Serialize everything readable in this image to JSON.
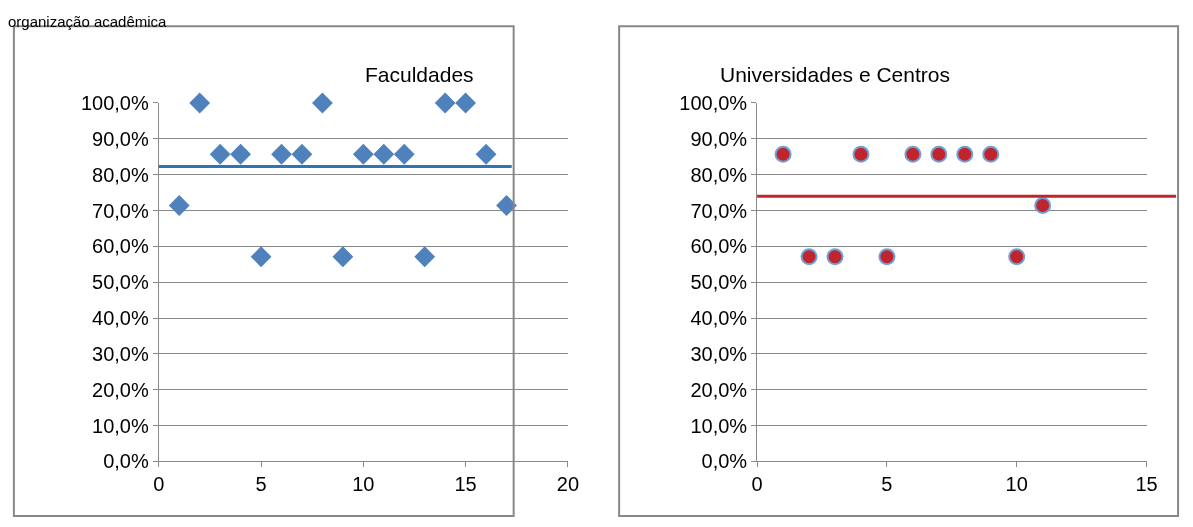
{
  "chart_data": [
    {
      "type": "scatter",
      "title": "Faculdades",
      "annotations": [
        "organização acadêmica"
      ],
      "x": [
        1,
        2,
        3,
        4,
        5,
        6,
        7,
        8,
        9,
        10,
        11,
        12,
        13,
        14,
        15,
        16,
        17
      ],
      "values": [
        71.4,
        100,
        85.7,
        85.7,
        57.1,
        85.7,
        85.7,
        100,
        57.1,
        85.7,
        85.7,
        85.7,
        57.1,
        100,
        100,
        85.7,
        71.4
      ],
      "color": "#4f81bd",
      "marker": "diamond",
      "xlim": [
        0,
        20
      ],
      "xticks": [
        0,
        5,
        10,
        15,
        20
      ],
      "ylim": [
        0,
        100
      ],
      "yticks": [
        {
          "value": 0,
          "label": "0,0%"
        },
        {
          "value": 10,
          "label": "10,0%"
        },
        {
          "value": 20,
          "label": "20,0%"
        },
        {
          "value": 30,
          "label": "30,0%"
        },
        {
          "value": 40,
          "label": "40,0%"
        },
        {
          "value": 50,
          "label": "50,0%"
        },
        {
          "value": 60,
          "label": "60,0%"
        },
        {
          "value": 70,
          "label": "70,0%"
        },
        {
          "value": 80,
          "label": "80,0%"
        },
        {
          "value": 90,
          "label": "90,0%"
        },
        {
          "value": 100,
          "label": "100,0%"
        }
      ],
      "grid": "y",
      "legend": false,
      "ref_lines": [
        {
          "axis": "y",
          "value": 82.3,
          "color": "#2e75b6"
        }
      ]
    },
    {
      "type": "scatter",
      "title": "Universidades e Centros",
      "x": [
        1,
        2,
        3,
        4,
        5,
        6,
        7,
        8,
        9,
        10,
        11
      ],
      "values": [
        85.7,
        57.1,
        57.1,
        85.7,
        57.1,
        85.7,
        85.7,
        85.7,
        85.7,
        57.1,
        71.4
      ],
      "color": "#c0242c",
      "marker": "circle",
      "xlim": [
        0,
        15
      ],
      "xticks": [
        0,
        5,
        10,
        15
      ],
      "ylim": [
        0,
        100
      ],
      "yticks": [
        {
          "value": 0,
          "label": "0,0%"
        },
        {
          "value": 10,
          "label": "10,0%"
        },
        {
          "value": 20,
          "label": "20,0%"
        },
        {
          "value": 30,
          "label": "30,0%"
        },
        {
          "value": 40,
          "label": "40,0%"
        },
        {
          "value": 50,
          "label": "50,0%"
        },
        {
          "value": 60,
          "label": "60,0%"
        },
        {
          "value": 70,
          "label": "70,0%"
        },
        {
          "value": 80,
          "label": "80,0%"
        },
        {
          "value": 90,
          "label": "90,0%"
        },
        {
          "value": 100,
          "label": "100,0%"
        }
      ],
      "grid": "y",
      "legend": false,
      "ref_lines": [
        {
          "axis": "y",
          "value": 74.0,
          "color": "#c0242c"
        }
      ]
    }
  ]
}
